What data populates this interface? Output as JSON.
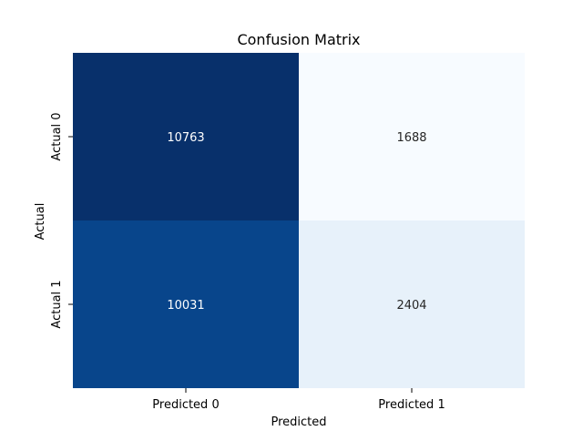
{
  "chart_data": {
    "type": "heatmap",
    "title": "Confusion Matrix",
    "xlabel": "Predicted",
    "ylabel": "Actual",
    "x_categories": [
      "Predicted 0",
      "Predicted 1"
    ],
    "y_categories": [
      "Actual 0",
      "Actual 1"
    ],
    "values": [
      [
        10763,
        1688
      ],
      [
        10031,
        2404
      ]
    ],
    "colormap": "Blues",
    "colorbar": false,
    "grid": false,
    "colors": {
      "high": "#08306b",
      "low": "#f7fbff",
      "text_dark_bg": "#ffffff",
      "text_light_bg": "#262626"
    }
  }
}
